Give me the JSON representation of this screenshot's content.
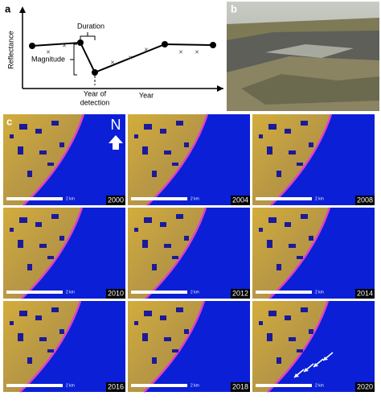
{
  "panel_a": {
    "label": "a",
    "y_axis": "Reflectance",
    "x_axis": "Year",
    "detection": [
      "Year of",
      "detection"
    ],
    "duration": "Duration",
    "magnitude": "Magnitude"
  },
  "panel_b": {
    "label": "b"
  },
  "panel_c": {
    "label": "c",
    "north": "N",
    "tiles": [
      {
        "year": "2000",
        "scale": "2 km"
      },
      {
        "year": "2004",
        "scale": "2 km"
      },
      {
        "year": "2008",
        "scale": "2 km"
      },
      {
        "year": "2010",
        "scale": "2 km"
      },
      {
        "year": "2012",
        "scale": "2 km"
      },
      {
        "year": "2014",
        "scale": "2 km"
      },
      {
        "year": "2016",
        "scale": "2 km"
      },
      {
        "year": "2018",
        "scale": "2 km"
      },
      {
        "year": "2020",
        "scale": "2 km"
      }
    ]
  }
}
